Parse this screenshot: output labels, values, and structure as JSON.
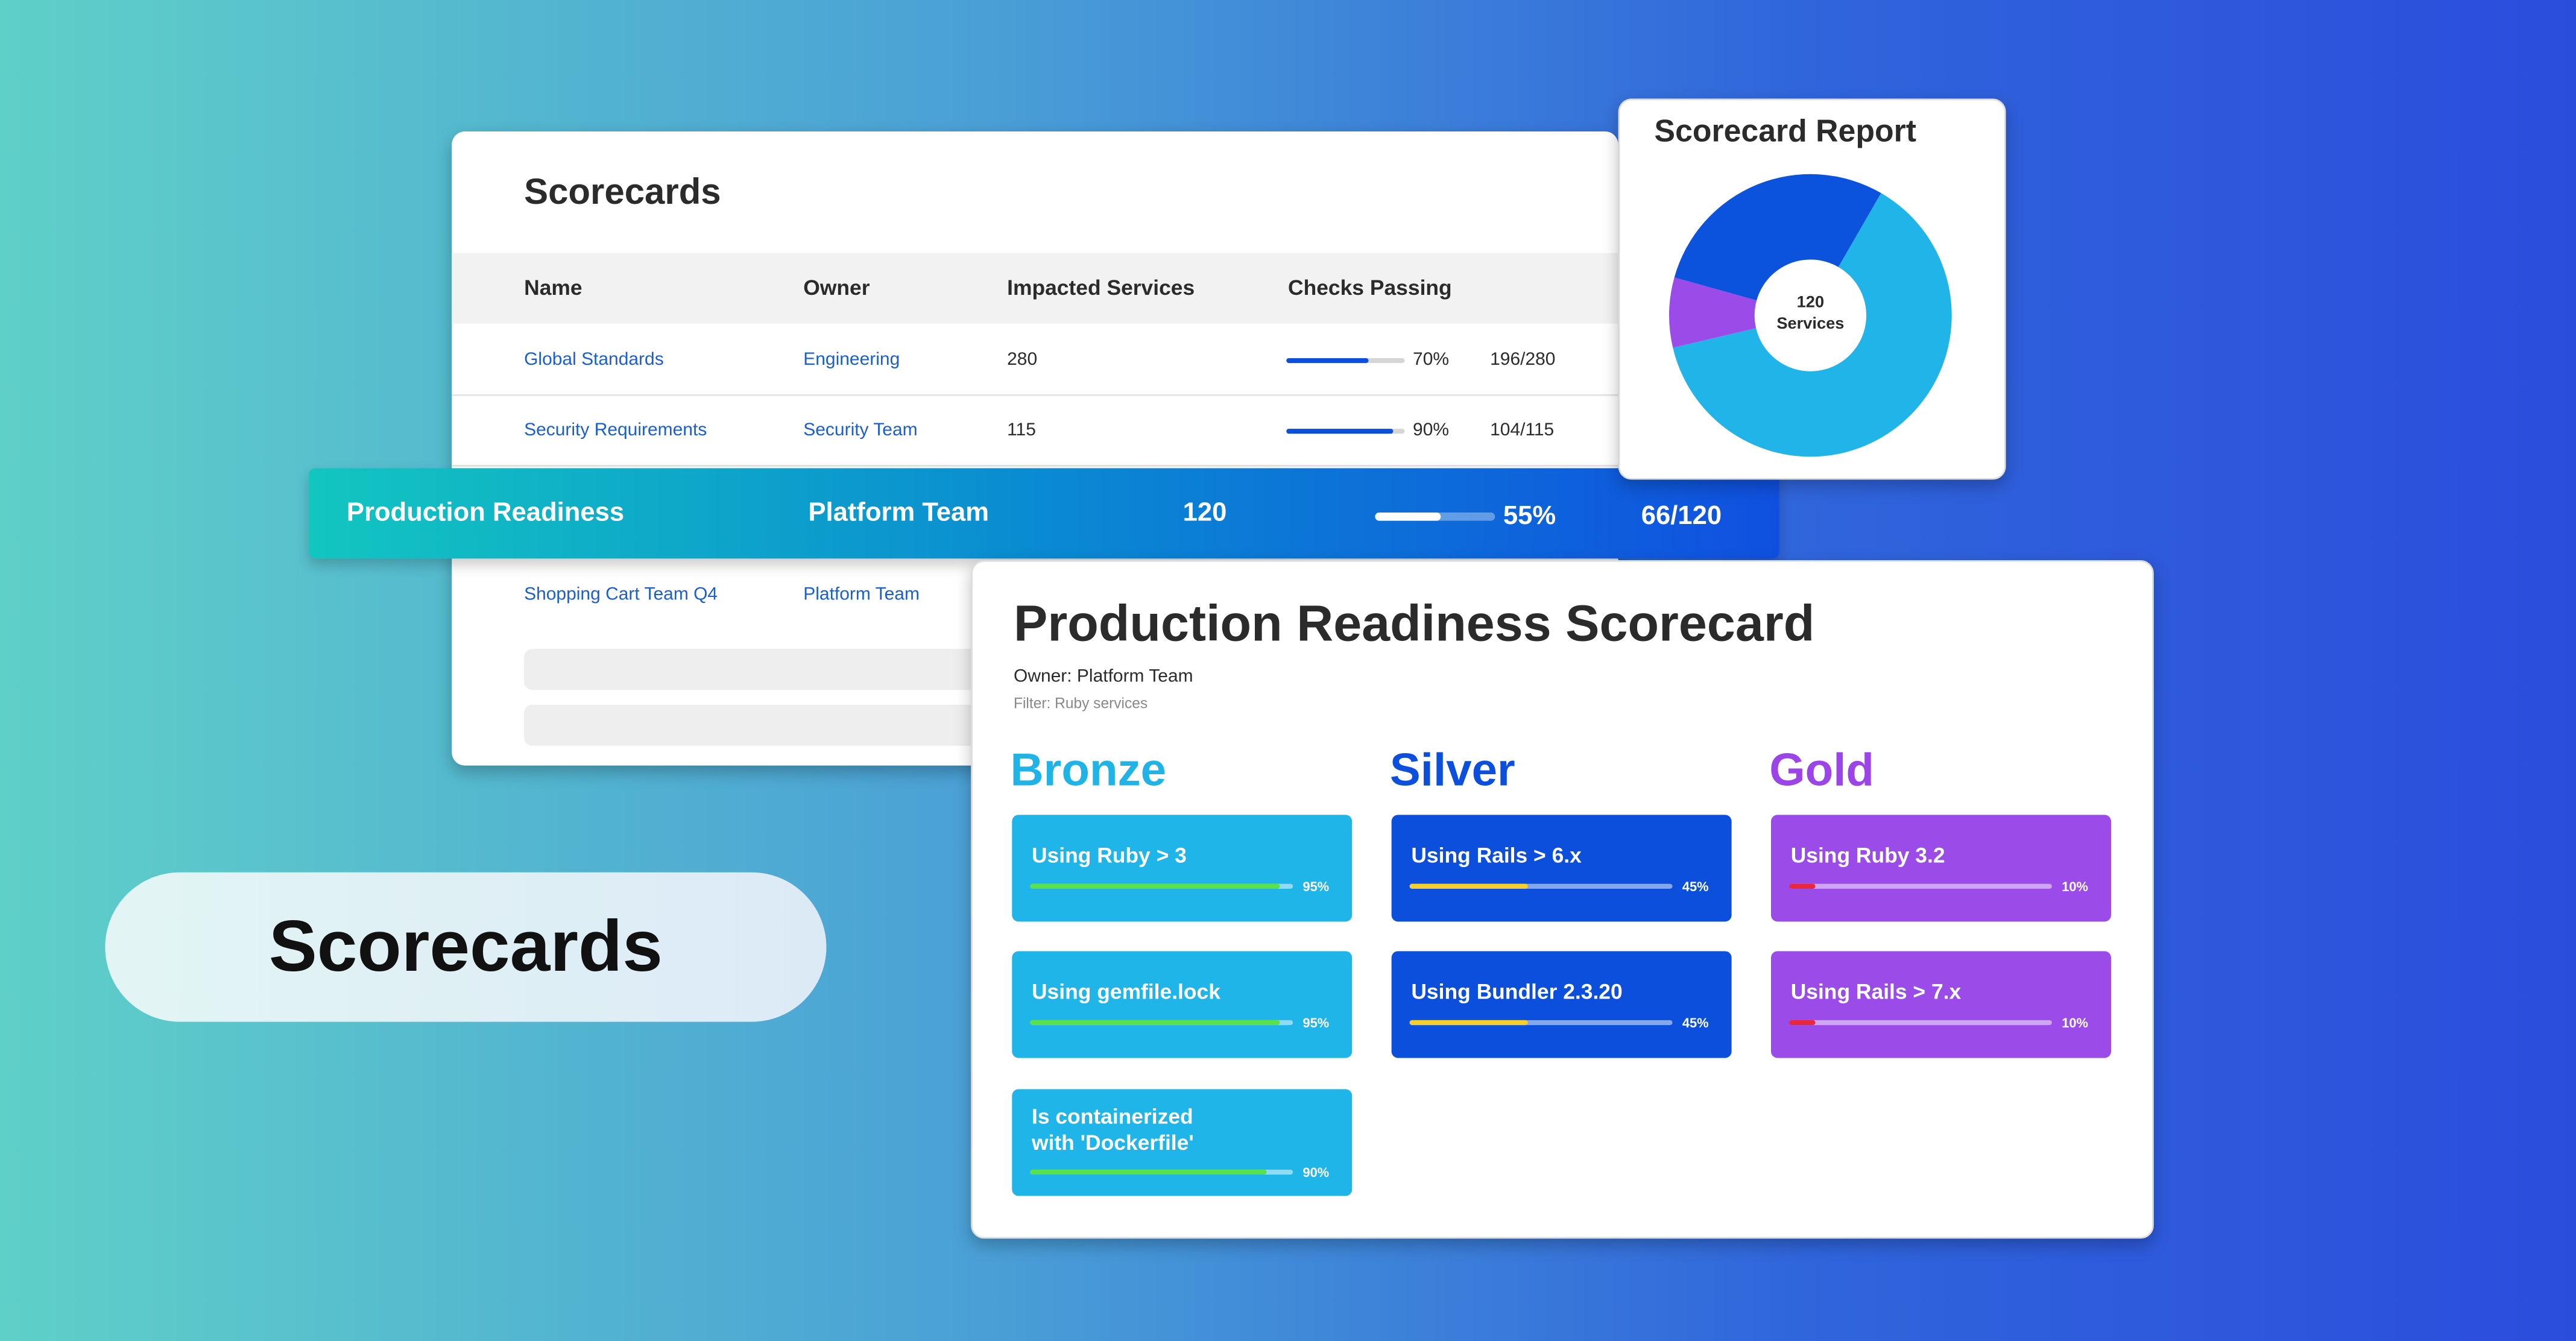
{
  "badge": "Scorecards",
  "table": {
    "title": "Scorecards",
    "headers": [
      "Name",
      "Owner",
      "Impacted Services",
      "Checks Passing"
    ],
    "rows": [
      {
        "name": "Global Standards",
        "owner": "Engineering",
        "services": 280,
        "percent": 70,
        "percent_label": "70%",
        "passing": "196/280"
      },
      {
        "name": "Security Requirements",
        "owner": "Security Team",
        "services": 115,
        "percent": 90,
        "percent_label": "90%",
        "passing": "104/115"
      }
    ],
    "highlight": {
      "name": "Production Readiness",
      "owner": "Platform Team",
      "services": 120,
      "percent": 55,
      "percent_label": "55%",
      "passing": "66/120"
    },
    "last_row": {
      "name": "Shopping Cart Team Q4",
      "owner": "Platform Team"
    }
  },
  "report": {
    "title": "Scorecard Report",
    "center_value": 120,
    "center_label": "Services",
    "slices": [
      {
        "color": "#21b4e8",
        "value": 63
      },
      {
        "color": "#9b4be8",
        "value": 8
      },
      {
        "color": "#0b52dc",
        "value": 29
      }
    ]
  },
  "detail": {
    "title": "Production Readiness Scorecard",
    "owner": "Owner: Platform Team",
    "filter": "Filter: Ruby services",
    "tiers": [
      {
        "name": "Bronze",
        "color": "#1fb3e6",
        "tile_color": "#20b5e8",
        "bar_color": "#5ae04a",
        "checks": [
          {
            "label": "Using Ruby > 3",
            "value": 95,
            "value_label": "95%"
          },
          {
            "label": "Using gemfile.lock",
            "value": 95,
            "value_label": "95%"
          },
          {
            "label": "Is containerized\nwith 'Dockerfile'",
            "value": 90,
            "value_label": "90%"
          }
        ]
      },
      {
        "name": "Silver",
        "color": "#0b4fdc",
        "tile_color": "#0b4fdc",
        "bar_color": "#f5d02a",
        "checks": [
          {
            "label": "Using Rails > 6.x",
            "value": 45,
            "value_label": "45%"
          },
          {
            "label": "Using Bundler 2.3.20",
            "value": 45,
            "value_label": "45%"
          }
        ]
      },
      {
        "name": "Gold",
        "color": "#9b44e8",
        "tile_color": "#9b4be8",
        "bar_color": "#e8283c",
        "checks": [
          {
            "label": "Using Ruby 3.2",
            "value": 10,
            "value_label": "10%"
          },
          {
            "label": "Using Rails > 7.x",
            "value": 10,
            "value_label": "10%"
          }
        ]
      }
    ]
  }
}
